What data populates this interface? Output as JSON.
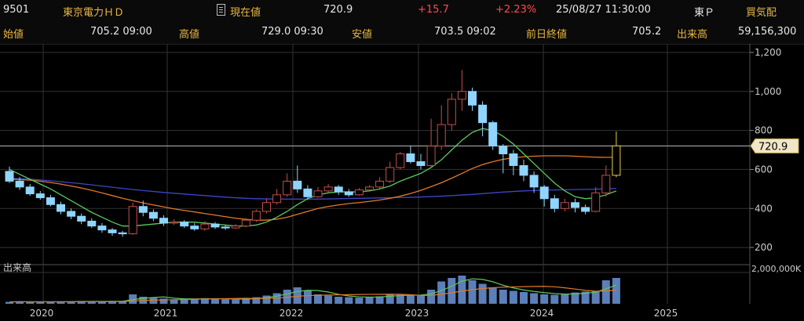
{
  "header": {
    "code": "9501",
    "name": "東京電力ＨＤ",
    "current_label": "現在値",
    "current_value": "720.9",
    "change": "+15.7",
    "change_pct": "+2.23%",
    "datetime": "25/08/27  11:30:00",
    "market": "東Ｐ",
    "orderbook_label": "買気配"
  },
  "ohlc": {
    "open_label": "始値",
    "open_value": "705.2 09:00",
    "high_label": "高値",
    "high_value": "729.0 09:30",
    "low_label": "安値",
    "low_value": "703.5 09:02",
    "prev_label": "前日終値",
    "prev_value": "705.2",
    "volume_label": "出来高",
    "volume_value": "59,156,300"
  },
  "colors": {
    "up": "#c0504d",
    "down": "#8fd5ff",
    "ma_short": "#5cc85c",
    "ma_mid": "#e07a2a",
    "ma_long": "#3c46c8",
    "volume": "#5b7fb8",
    "grid": "#333333"
  },
  "chart_data": {
    "type": "candlestick",
    "price_axis": {
      "ticks": [
        200,
        400,
        600,
        800,
        1000,
        1200
      ],
      "tick_labels": [
        "200",
        "400",
        "600",
        "800",
        "1,000",
        "1,200"
      ],
      "range": [
        120,
        1220
      ]
    },
    "volume_axis": {
      "label": "出来高",
      "tick_label": "2,000,000K",
      "max": 2000000
    },
    "x_labels": [
      "2020",
      "2021",
      "2022",
      "2023",
      "2024",
      "2025"
    ],
    "current_price": 720.9,
    "current_price_label": "720.9",
    "candles": [
      [
        590,
        540,
        615,
        530
      ],
      [
        540,
        510,
        560,
        495
      ],
      [
        510,
        475,
        525,
        465
      ],
      [
        475,
        455,
        490,
        445
      ],
      [
        455,
        420,
        470,
        410
      ],
      [
        420,
        385,
        435,
        370
      ],
      [
        385,
        360,
        400,
        345
      ],
      [
        360,
        335,
        375,
        320
      ],
      [
        335,
        310,
        350,
        300
      ],
      [
        310,
        290,
        325,
        275
      ],
      [
        290,
        275,
        300,
        260
      ],
      [
        275,
        270,
        285,
        255
      ],
      [
        270,
        410,
        430,
        265
      ],
      [
        410,
        380,
        440,
        360
      ],
      [
        380,
        350,
        395,
        335
      ],
      [
        350,
        325,
        365,
        310
      ],
      [
        325,
        330,
        345,
        315
      ],
      [
        330,
        310,
        340,
        300
      ],
      [
        310,
        295,
        325,
        285
      ],
      [
        295,
        320,
        335,
        285
      ],
      [
        320,
        305,
        330,
        295
      ],
      [
        305,
        300,
        315,
        290
      ],
      [
        300,
        310,
        320,
        295
      ],
      [
        310,
        340,
        350,
        305
      ],
      [
        340,
        385,
        395,
        330
      ],
      [
        385,
        430,
        450,
        375
      ],
      [
        430,
        470,
        500,
        420
      ],
      [
        470,
        540,
        580,
        460
      ],
      [
        540,
        500,
        620,
        480
      ],
      [
        500,
        460,
        520,
        445
      ],
      [
        460,
        490,
        510,
        455
      ],
      [
        490,
        510,
        525,
        480
      ],
      [
        510,
        485,
        520,
        470
      ],
      [
        485,
        470,
        500,
        460
      ],
      [
        470,
        495,
        505,
        465
      ],
      [
        495,
        510,
        520,
        490
      ],
      [
        510,
        540,
        560,
        500
      ],
      [
        540,
        610,
        640,
        530
      ],
      [
        610,
        680,
        690,
        600
      ],
      [
        680,
        640,
        720,
        630
      ],
      [
        640,
        620,
        680,
        600
      ],
      [
        620,
        720,
        860,
        610
      ],
      [
        720,
        830,
        930,
        700
      ],
      [
        830,
        960,
        990,
        800
      ],
      [
        960,
        1000,
        1110,
        900
      ],
      [
        1000,
        930,
        1020,
        900
      ],
      [
        930,
        840,
        950,
        770
      ],
      [
        840,
        720,
        850,
        700
      ],
      [
        720,
        680,
        730,
        580
      ],
      [
        680,
        620,
        700,
        570
      ],
      [
        620,
        570,
        650,
        540
      ],
      [
        570,
        510,
        590,
        480
      ],
      [
        510,
        450,
        520,
        410
      ],
      [
        450,
        400,
        470,
        380
      ],
      [
        400,
        430,
        450,
        385
      ],
      [
        430,
        405,
        450,
        380
      ],
      [
        405,
        385,
        420,
        370
      ],
      [
        385,
        480,
        510,
        380
      ],
      [
        480,
        570,
        620,
        460
      ],
      [
        570,
        720.9,
        795,
        560
      ]
    ],
    "volume": [
      8,
      10,
      7,
      9,
      8,
      10,
      9,
      12,
      10,
      9,
      11,
      12,
      40,
      30,
      25,
      22,
      18,
      20,
      22,
      24,
      20,
      19,
      18,
      22,
      28,
      35,
      45,
      60,
      70,
      55,
      40,
      35,
      30,
      28,
      26,
      30,
      32,
      40,
      38,
      36,
      34,
      60,
      95,
      110,
      120,
      100,
      85,
      70,
      60,
      55,
      50,
      45,
      40,
      38,
      42,
      48,
      52,
      55,
      100,
      110
    ],
    "ma_short": [
      600,
      575,
      550,
      525,
      500,
      470,
      440,
      410,
      380,
      355,
      330,
      310,
      310,
      315,
      320,
      325,
      330,
      330,
      330,
      325,
      320,
      315,
      310,
      310,
      315,
      330,
      355,
      385,
      420,
      450,
      470,
      480,
      485,
      485,
      485,
      490,
      500,
      515,
      540,
      560,
      580,
      610,
      650,
      700,
      750,
      790,
      810,
      800,
      770,
      730,
      680,
      630,
      580,
      530,
      490,
      460,
      450,
      455,
      470,
      490
    ],
    "ma_mid": [
      550,
      548,
      545,
      540,
      533,
      525,
      515,
      505,
      493,
      480,
      466,
      452,
      440,
      428,
      418,
      408,
      398,
      390,
      382,
      374,
      366,
      358,
      350,
      344,
      340,
      340,
      345,
      355,
      370,
      385,
      400,
      410,
      418,
      425,
      430,
      436,
      443,
      452,
      463,
      477,
      493,
      512,
      532,
      555,
      580,
      605,
      625,
      640,
      652,
      660,
      665,
      668,
      670,
      670,
      670,
      668,
      665,
      663,
      662,
      663
    ],
    "ma_long": [
      555,
      553,
      550,
      546,
      542,
      537,
      532,
      527,
      521,
      515,
      509,
      503,
      497,
      492,
      487,
      482,
      478,
      474,
      470,
      466,
      462,
      458,
      455,
      452,
      450,
      449,
      448,
      448,
      448,
      448,
      448,
      449,
      450,
      451,
      452,
      453,
      454,
      455,
      456,
      457,
      459,
      461,
      463,
      466,
      469,
      472,
      476,
      480,
      484,
      487,
      490,
      492,
      494,
      495,
      496,
      497,
      498,
      499,
      501,
      503
    ]
  }
}
